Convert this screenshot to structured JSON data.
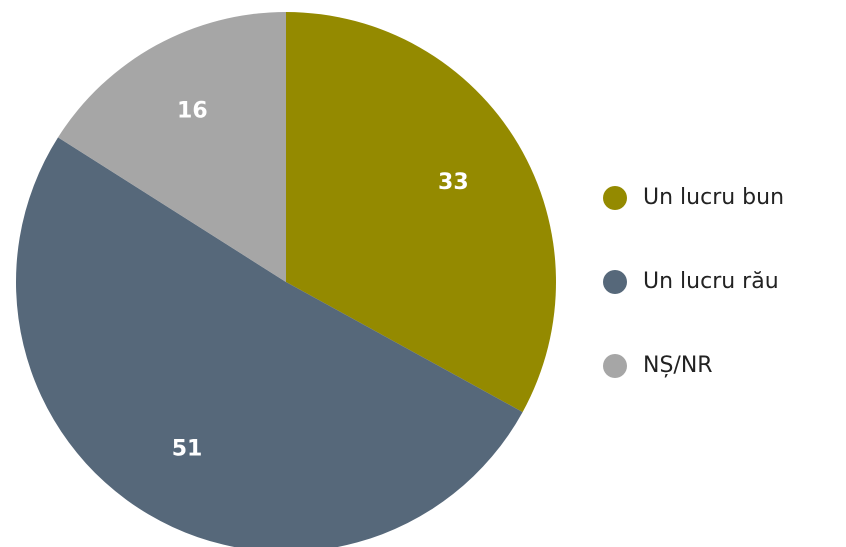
{
  "chart_data": {
    "type": "pie",
    "categories": [
      "Un lucru bun",
      "Un lucru rău",
      "NȘ/NR"
    ],
    "values": [
      33,
      51,
      16
    ],
    "colors": [
      "#948a00",
      "#56687a",
      "#a6a6a6"
    ],
    "legend": "right"
  }
}
